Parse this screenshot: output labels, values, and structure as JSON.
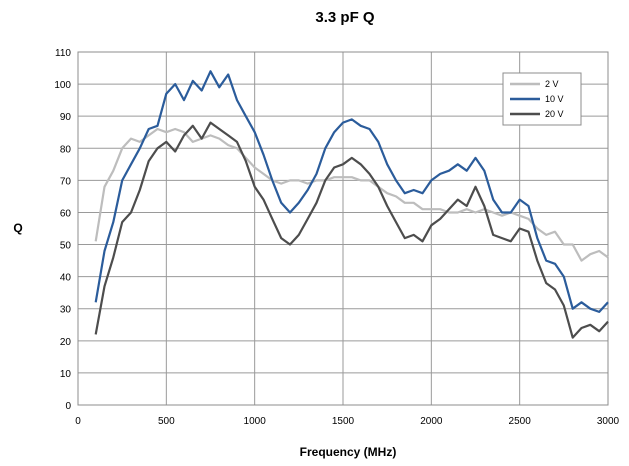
{
  "chart_data": {
    "type": "line",
    "title": "3.3 pF Q",
    "xlabel": "Frequency (MHz)",
    "ylabel": "Q",
    "xlim": [
      0,
      3000
    ],
    "ylim": [
      0,
      110
    ],
    "xticks": [
      0,
      500,
      1000,
      1500,
      2000,
      2500,
      3000
    ],
    "yticks": [
      0,
      10,
      20,
      30,
      40,
      50,
      60,
      70,
      80,
      90,
      100,
      110
    ],
    "grid": "on",
    "legend_position": "top-right",
    "series": [
      {
        "name": "2 V",
        "color": "#bdbdbd",
        "x": [
          100,
          150,
          200,
          250,
          300,
          350,
          400,
          450,
          500,
          550,
          600,
          650,
          700,
          750,
          800,
          850,
          900,
          950,
          1000,
          1050,
          1100,
          1150,
          1200,
          1250,
          1300,
          1350,
          1400,
          1450,
          1500,
          1550,
          1600,
          1650,
          1700,
          1750,
          1800,
          1850,
          1900,
          1950,
          2000,
          2050,
          2100,
          2150,
          2200,
          2250,
          2300,
          2350,
          2400,
          2450,
          2500,
          2550,
          2600,
          2650,
          2700,
          2750,
          2800,
          2850,
          2900,
          2950,
          3000
        ],
        "y": [
          51,
          68,
          73,
          80,
          83,
          82,
          84,
          86,
          85,
          86,
          85,
          82,
          83,
          84,
          83,
          81,
          80,
          77,
          74,
          72,
          70,
          69,
          70,
          70,
          69,
          70,
          70,
          71,
          71,
          71,
          70,
          70,
          68,
          66,
          65,
          63,
          63,
          61,
          61,
          61,
          60,
          60,
          61,
          60,
          61,
          60,
          59,
          60,
          59,
          58,
          55,
          53,
          54,
          50,
          50,
          45,
          47,
          48,
          46
        ]
      },
      {
        "name": "10 V",
        "color": "#2b5c9b",
        "x": [
          100,
          150,
          200,
          250,
          300,
          350,
          400,
          450,
          500,
          550,
          600,
          650,
          700,
          750,
          800,
          850,
          900,
          950,
          1000,
          1050,
          1100,
          1150,
          1200,
          1250,
          1300,
          1350,
          1400,
          1450,
          1500,
          1550,
          1600,
          1650,
          1700,
          1750,
          1800,
          1850,
          1900,
          1950,
          2000,
          2050,
          2100,
          2150,
          2200,
          2250,
          2300,
          2350,
          2400,
          2450,
          2500,
          2550,
          2600,
          2650,
          2700,
          2750,
          2800,
          2850,
          2900,
          2950,
          3000
        ],
        "y": [
          32,
          48,
          57,
          70,
          75,
          80,
          86,
          87,
          97,
          100,
          95,
          101,
          98,
          104,
          99,
          103,
          95,
          90,
          85,
          78,
          70,
          63,
          60,
          63,
          67,
          72,
          80,
          85,
          88,
          89,
          87,
          86,
          82,
          75,
          70,
          66,
          67,
          66,
          70,
          72,
          73,
          75,
          73,
          77,
          73,
          64,
          60,
          60,
          64,
          62,
          52,
          45,
          44,
          40,
          30,
          32,
          30,
          29,
          32
        ]
      },
      {
        "name": "20 V",
        "color": "#4d4d4d",
        "x": [
          100,
          150,
          200,
          250,
          300,
          350,
          400,
          450,
          500,
          550,
          600,
          650,
          700,
          750,
          800,
          850,
          900,
          950,
          1000,
          1050,
          1100,
          1150,
          1200,
          1250,
          1300,
          1350,
          1400,
          1450,
          1500,
          1550,
          1600,
          1650,
          1700,
          1750,
          1800,
          1850,
          1900,
          1950,
          2000,
          2050,
          2100,
          2150,
          2200,
          2250,
          2300,
          2350,
          2400,
          2450,
          2500,
          2550,
          2600,
          2650,
          2700,
          2750,
          2800,
          2850,
          2900,
          2950,
          3000
        ],
        "y": [
          22,
          37,
          46,
          57,
          60,
          67,
          76,
          80,
          82,
          79,
          84,
          87,
          83,
          88,
          86,
          84,
          82,
          76,
          68,
          64,
          58,
          52,
          50,
          53,
          58,
          63,
          70,
          74,
          75,
          77,
          75,
          72,
          68,
          62,
          57,
          52,
          53,
          51,
          56,
          58,
          61,
          64,
          62,
          68,
          62,
          53,
          52,
          51,
          55,
          54,
          45,
          38,
          36,
          31,
          21,
          24,
          25,
          23,
          26
        ]
      }
    ]
  }
}
